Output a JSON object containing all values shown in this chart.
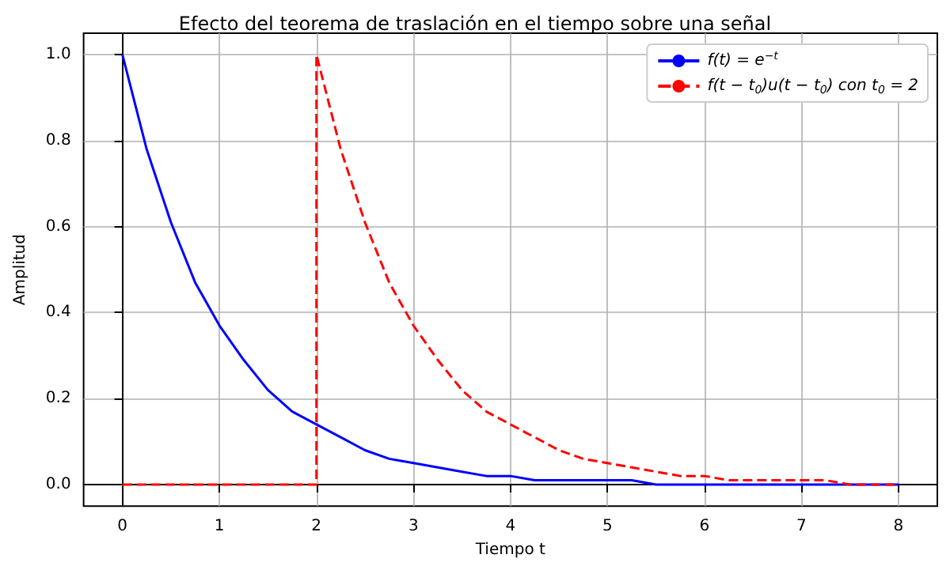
{
  "chart_data": {
    "type": "line",
    "title": "Efecto del teorema de traslación en el tiempo sobre una señal",
    "xlabel": "Tiempo t",
    "ylabel": "Amplitud",
    "xlim": [
      -0.4,
      8.4
    ],
    "xticks": [
      0,
      1,
      2,
      3,
      4,
      5,
      6,
      7,
      8
    ],
    "ylim": [
      -0.05,
      1.05
    ],
    "yticks": [
      {
        "value": 0,
        "label": "0.0"
      },
      {
        "value": 0.2,
        "label": "0.2"
      },
      {
        "value": 0.4,
        "label": "0.4"
      },
      {
        "value": 0.6,
        "label": "0.6"
      },
      {
        "value": 0.8,
        "label": "0.8"
      },
      {
        "value": 1,
        "label": "1.0"
      }
    ],
    "grid": true,
    "legend": "top right",
    "marker": "none",
    "series": [
      {
        "name": "f(t) = e$^{−t}$",
        "color": "#0000ff",
        "line_style": "solid",
        "x": [
          0,
          0.25,
          0.5,
          0.75,
          1,
          1.25,
          1.5,
          1.75,
          2,
          2.25,
          2.5,
          2.75,
          3,
          3.25,
          3.5,
          3.75,
          4,
          4.25,
          4.5,
          4.75,
          5,
          5.25,
          5.5,
          5.75,
          6,
          6.25,
          6.5,
          6.75,
          7,
          7.25,
          7.5,
          7.75,
          8
        ],
        "values": [
          1,
          0.78,
          0.61,
          0.47,
          0.37,
          0.29,
          0.22,
          0.17,
          0.14,
          0.11,
          0.08,
          0.06,
          0.05,
          0.04,
          0.03,
          0.02,
          0.02,
          0.01,
          0.01,
          0.01,
          0.01,
          0.01,
          0,
          0,
          0,
          0,
          0,
          0,
          0,
          0,
          0,
          0,
          0
        ]
      },
      {
        "name": "f(t − t$_{0}$)u(t − t$_{0}$) con t$_{0}$ = 2",
        "color": "#ff0000",
        "line_style": "dashed",
        "x": [
          0,
          2,
          2,
          2.25,
          2.5,
          2.75,
          3,
          3.25,
          3.5,
          3.75,
          4,
          4.25,
          4.5,
          4.75,
          5,
          5.25,
          5.5,
          5.75,
          6,
          6.25,
          6.5,
          6.75,
          7,
          7.25,
          7.5,
          7.75,
          8
        ],
        "values": [
          0,
          0,
          1,
          0.78,
          0.61,
          0.47,
          0.37,
          0.29,
          0.22,
          0.17,
          0.14,
          0.11,
          0.08,
          0.06,
          0.05,
          0.04,
          0.03,
          0.02,
          0.02,
          0.01,
          0.01,
          0.01,
          0.01,
          0.01,
          0,
          0,
          0
        ]
      }
    ]
  }
}
